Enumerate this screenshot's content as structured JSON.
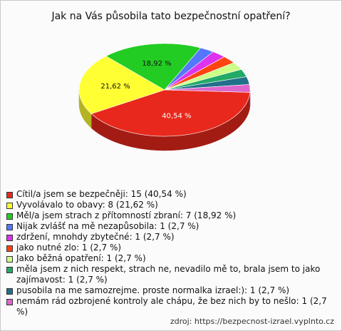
{
  "chart_data": {
    "type": "pie",
    "title": "Jak na Vás působila tato bezpečnostní opatření?",
    "categories": [
      "Cítil/a jsem se bezpečněji: 15 (40,54 %)",
      "Vyvolávalo to obavy: 8 (21,62 %)",
      "Měl/a jsem strach z přítomností zbraní: 7 (18,92 %)",
      "Nijak zvlášť na mě nezapůsobila: 1 (2,7 %)",
      "zdržení, mnohdy zbytečné: 1 (2,7 %)",
      "jako nutné zlo: 1 (2,7 %)",
      "Jako běžná opatření: 1 (2,7 %)",
      "měla jsem z nich respekt, strach ne, nevadilo mě to, bralа jsem to jako zajímavost: 1 (2,7 %)",
      "pusobila na me samozrejme. proste normalka izrael:): 1 (2,7 %)",
      "nemám rád ozbrojené kontroly ale chápu, že bez nich by to nešlo: 1 (2,7 %)"
    ],
    "values": [
      40.54,
      21.62,
      18.92,
      2.7,
      2.7,
      2.7,
      2.7,
      2.7,
      2.7,
      2.7
    ],
    "value_labels": [
      "40,54 %",
      "21,62 %",
      "18,92 %",
      null,
      null,
      null,
      null,
      null,
      null,
      null
    ],
    "colors": [
      "#e8281c",
      "#ffff33",
      "#22cc22",
      "#5577ff",
      "#dd33ee",
      "#ff4411",
      "#ccff88",
      "#22aa66",
      "#22708a",
      "#dd66cc"
    ],
    "source": "zdroj: https://bezpecnost-izrael.vyplnto.cz"
  }
}
